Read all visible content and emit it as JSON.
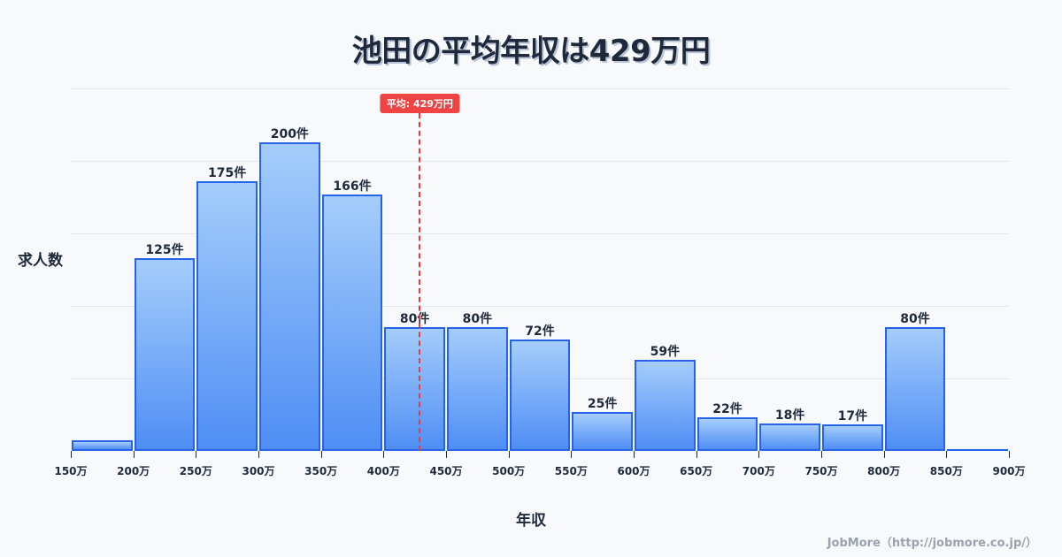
{
  "title": "池田の平均年収は429万円",
  "y_axis_label": "求人数",
  "x_axis_label": "年収",
  "average_badge": "平均: 429万円",
  "credit": "JobMore（http://jobmore.co.jp/）",
  "colors": {
    "bar_border": "#2563eb",
    "bar_top": "#a5cdfb",
    "bar_bottom": "#4f8ef5",
    "average_line": "#e53e3e",
    "background": "#f8f9fb"
  },
  "chart_data": {
    "type": "bar",
    "title": "池田の平均年収は429万円",
    "xlabel": "年収",
    "ylabel": "求人数",
    "categories": [
      "150万-200万",
      "200万-250万",
      "250万-300万",
      "300万-350万",
      "350万-400万",
      "400万-450万",
      "450万-500万",
      "500万-550万",
      "550万-600万",
      "600万-650万",
      "650万-700万",
      "700万-750万",
      "750万-800万",
      "800万-850万",
      "850万-900万"
    ],
    "values": [
      7,
      125,
      175,
      200,
      166,
      80,
      80,
      72,
      25,
      59,
      22,
      18,
      17,
      80,
      1
    ],
    "value_labels": [
      "",
      "125件",
      "175件",
      "200件",
      "166件",
      "80件",
      "80件",
      "72件",
      "25件",
      "59件",
      "22件",
      "18件",
      "17件",
      "80件",
      ""
    ],
    "x_ticks": [
      "150万",
      "200万",
      "250万",
      "300万",
      "350万",
      "400万",
      "450万",
      "500万",
      "550万",
      "600万",
      "650万",
      "700万",
      "750万",
      "800万",
      "850万",
      "900万"
    ],
    "x_range": [
      150,
      900
    ],
    "ylim": [
      0,
      235
    ],
    "grid": true,
    "annotations": [
      {
        "type": "vline",
        "x": 429,
        "label": "平均: 429万円"
      }
    ]
  }
}
